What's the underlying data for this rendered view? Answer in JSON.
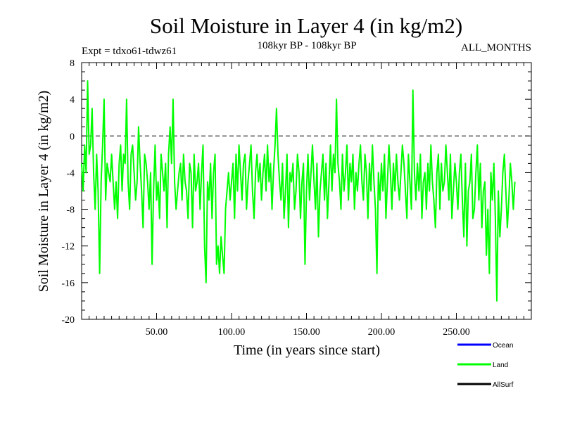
{
  "chart_data": {
    "type": "line",
    "title": "Soil Moisture in Layer 4 (in kg/m2)",
    "subtitle_left": "Expt = tdxo61-tdwz61",
    "subtitle_center": "108kyr BP - 108kyr BP",
    "subtitle_right": "ALL_MONTHS",
    "xlabel": "Time (in years since start)",
    "ylabel": "Soil Moisture in Layer 4 (in kg/m2)",
    "xlim": [
      0,
      300
    ],
    "ylim": [
      -20,
      8
    ],
    "xticks": [
      50,
      100,
      150,
      200,
      250
    ],
    "xtick_labels": [
      "50.00",
      "100.00",
      "150.00",
      "200.00",
      "250.00"
    ],
    "yticks": [
      8,
      4,
      0,
      -4,
      -8,
      -12,
      -16,
      -20
    ],
    "ytick_labels": [
      "8",
      "4",
      "0",
      "-4",
      "-8",
      "-12",
      "-16",
      "-20"
    ],
    "reference_line": 0,
    "legend": [
      {
        "name": "Ocean",
        "color": "#0000ff"
      },
      {
        "name": "Land",
        "color": "#00ff00"
      },
      {
        "name": "AllSurf",
        "color": "#000000"
      }
    ],
    "series": [
      {
        "name": "Land",
        "color": "#00ff00",
        "x_start": 0,
        "x_step": 1,
        "values": [
          -3,
          -6,
          -1,
          -4,
          6,
          -2,
          -1,
          3,
          -4,
          -8,
          -2,
          -6,
          -15,
          -5,
          -1,
          4,
          -7,
          -3,
          -4,
          -5,
          -2,
          -5,
          -8,
          -5,
          -9,
          -3,
          -1,
          -6,
          -2,
          -3,
          4,
          -5,
          -8,
          -2,
          -1,
          -4,
          -7,
          -5,
          1,
          -3,
          -6,
          -10,
          -2,
          -3,
          -5,
          -8,
          -4,
          -14,
          -6,
          -1,
          -7,
          -5,
          -9,
          -2,
          -4,
          -6,
          -3,
          -10,
          -2,
          1,
          -3,
          4,
          -5,
          -8,
          -6,
          -4,
          -3,
          -7,
          -2,
          -5,
          -6,
          -9,
          -3,
          -4,
          -10,
          -2,
          -6,
          -5,
          -3,
          -8,
          -4,
          -1,
          -12,
          -16,
          -5,
          -7,
          -3,
          -9,
          -4,
          -2,
          -14,
          -12,
          -15,
          -11,
          -13,
          -15,
          -8,
          -6,
          -4,
          -7,
          -5,
          -3,
          -9,
          -2,
          -6,
          -1,
          -4,
          -7,
          -3,
          -2,
          -8,
          -5,
          -3,
          -1,
          -6,
          -9,
          -4,
          -2,
          -5,
          -3,
          -7,
          -4,
          -2,
          -6,
          -1,
          -5,
          -3,
          -8,
          -4,
          -1,
          3,
          -2,
          -5,
          -7,
          -3,
          -9,
          -6,
          -2,
          -10,
          -4,
          -5,
          -3,
          -8,
          -6,
          -2,
          -4,
          -9,
          -5,
          -3,
          -14,
          -6,
          -2,
          -7,
          -4,
          -1,
          -5,
          -8,
          -3,
          -11,
          -6,
          -4,
          -2,
          -7,
          -3,
          -9,
          -5,
          -1,
          -6,
          -2,
          -4,
          4,
          -3,
          -5,
          -8,
          -2,
          -6,
          -4,
          -1,
          -7,
          -3,
          -5,
          -2,
          -8,
          -4,
          -6,
          -3,
          -1,
          -5,
          -7,
          -2,
          -4,
          -9,
          -3,
          -6,
          -1,
          -5,
          -8,
          -15,
          -4,
          -7,
          -3,
          -6,
          -2,
          -9,
          -5,
          -1,
          -4,
          -8,
          -3,
          -6,
          -2,
          -5,
          -7,
          -4,
          -1,
          -3,
          -6,
          -9,
          -2,
          -5,
          -8,
          5,
          -4,
          -7,
          -3,
          -6,
          -2,
          -9,
          -5,
          -4,
          -8,
          -3,
          -6,
          -1,
          -5,
          -7,
          -10,
          -4,
          -2,
          -8,
          -3,
          -6,
          -5,
          -1,
          -4,
          -7,
          -2,
          -9,
          -6,
          -3,
          -5,
          -8,
          -4,
          -2,
          -7,
          -11,
          -3,
          -12,
          -6,
          -5,
          -2,
          -9,
          -8,
          -4,
          -1,
          -7,
          -3,
          -10,
          -6,
          -5,
          -13,
          -8,
          -15,
          -4,
          -7,
          -3,
          -9,
          -18,
          -6,
          -11,
          -8,
          -4,
          -2,
          -6,
          -10,
          -7,
          -3,
          -5,
          -8,
          -5
        ]
      }
    ]
  }
}
